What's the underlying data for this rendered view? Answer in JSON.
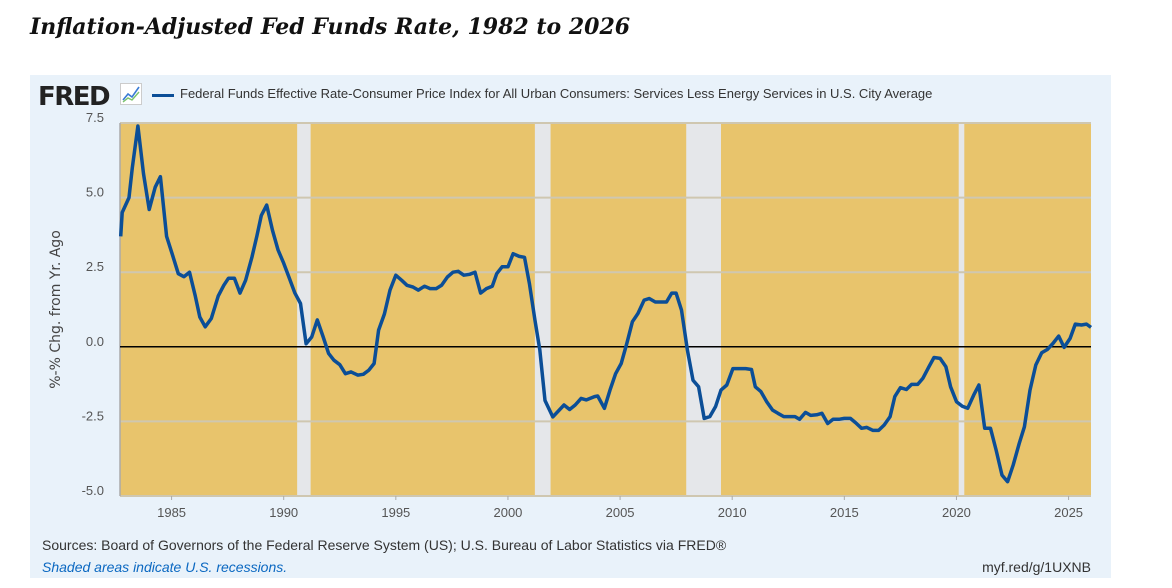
{
  "title": "Inflation-Adjusted Fed Funds Rate, 1982 to 2026",
  "logo": "FRED",
  "footer": {
    "source": "Sources: Board of Governors of the Federal Reserve System (US); U.S. Bureau of Labor Statistics via FRED®",
    "shaded_note": "Shaded areas indicate U.S. recessions.",
    "link": "myf.red/g/1UXNB"
  },
  "chart_data": {
    "type": "line",
    "title": "",
    "xlabel": "",
    "ylabel": "%-% Chg. from Yr. Ago",
    "xlim": [
      1982.7,
      2026.0
    ],
    "ylim": [
      -5.0,
      7.5
    ],
    "yticks": [
      "7.5",
      "5.0",
      "2.5",
      "0.0",
      "-2.5",
      "-5.0"
    ],
    "xticks": [
      "1985",
      "1990",
      "1995",
      "2000",
      "2005",
      "2010",
      "2015",
      "2020",
      "2025"
    ],
    "grid": true,
    "legend_placement": "top",
    "colors": {
      "line": "#0b4e97",
      "plot_bg": "#e8c46c",
      "recession": "#e5e7ea",
      "panel_bg": "#e9f2fa",
      "zero_line": "#000000"
    },
    "recessions": [
      [
        1990.6,
        1991.2
      ],
      [
        2001.2,
        2001.9
      ],
      [
        2007.95,
        2009.5
      ],
      [
        2020.1,
        2020.35
      ]
    ],
    "series": [
      {
        "name": "Federal Funds Effective Rate-Consumer Price Index for All Urban Consumers: Services Less Energy Services in U.S. City Average",
        "x": [
          1982.73,
          1982.8,
          1983.1,
          1983.25,
          1983.5,
          1983.75,
          1984.0,
          1984.27,
          1984.5,
          1984.78,
          1985.03,
          1985.3,
          1985.55,
          1985.8,
          1986.06,
          1986.26,
          1986.5,
          1986.77,
          1987.08,
          1987.33,
          1987.54,
          1987.8,
          1988.05,
          1988.3,
          1988.58,
          1988.8,
          1989.0,
          1989.24,
          1989.5,
          1989.75,
          1990.0,
          1990.23,
          1990.5,
          1990.75,
          1991.0,
          1991.25,
          1991.5,
          1991.76,
          1992.0,
          1992.24,
          1992.5,
          1992.75,
          1993.0,
          1993.3,
          1993.55,
          1993.8,
          1994.03,
          1994.23,
          1994.49,
          1994.74,
          1995.0,
          1995.26,
          1995.5,
          1995.77,
          1996.0,
          1996.28,
          1996.53,
          1996.8,
          1997.04,
          1997.3,
          1997.55,
          1997.78,
          1998.03,
          1998.3,
          1998.53,
          1998.78,
          1999.04,
          1999.3,
          1999.5,
          1999.74,
          2000.0,
          2000.23,
          2000.5,
          2000.74,
          2000.96,
          2001.2,
          2001.42,
          2001.65,
          2002.0,
          2002.5,
          2002.75,
          2003.0,
          2003.26,
          2003.5,
          2003.86,
          2004.0,
          2004.3,
          2004.55,
          2004.8,
          2005.05,
          2005.3,
          2005.55,
          2005.8,
          2006.07,
          2006.3,
          2006.57,
          2006.8,
          2007.07,
          2007.3,
          2007.5,
          2007.74,
          2008.0,
          2008.25,
          2008.5,
          2008.75,
          2009.0,
          2009.26,
          2009.5,
          2009.76,
          2010.03,
          2010.28,
          2010.6,
          2010.86,
          2011.03,
          2011.28,
          2011.54,
          2011.8,
          2012.04,
          2012.3,
          2012.55,
          2012.8,
          2013.0,
          2013.27,
          2013.5,
          2013.77,
          2014.0,
          2014.26,
          2014.5,
          2014.76,
          2015.0,
          2015.27,
          2015.5,
          2015.77,
          2016.0,
          2016.28,
          2016.53,
          2016.78,
          2017.04,
          2017.25,
          2017.5,
          2017.77,
          2018.0,
          2018.27,
          2018.5,
          2018.77,
          2019.0,
          2019.27,
          2019.53,
          2019.74,
          2020.0,
          2020.26,
          2020.5,
          2020.77,
          2021.0,
          2021.26,
          2021.52,
          2021.77,
          2022.03,
          2022.28,
          2022.53,
          2022.8,
          2023.03,
          2023.28,
          2023.54,
          2023.8,
          2024.05,
          2024.3,
          2024.56,
          2024.8,
          2025.07,
          2025.3,
          2025.57,
          2025.8,
          2026.0
        ],
        "values": [
          3.7,
          4.5,
          5.0,
          6.0,
          7.4,
          5.8,
          4.6,
          5.35,
          5.7,
          3.7,
          3.1,
          2.45,
          2.35,
          2.5,
          1.7,
          1.0,
          0.67,
          0.95,
          1.7,
          2.06,
          2.3,
          2.3,
          1.8,
          2.23,
          3.0,
          3.7,
          4.4,
          4.75,
          3.9,
          3.24,
          2.8,
          2.34,
          1.8,
          1.45,
          0.1,
          0.33,
          0.9,
          0.33,
          -0.22,
          -0.45,
          -0.6,
          -0.9,
          -0.84,
          -0.95,
          -0.92,
          -0.78,
          -0.56,
          0.56,
          1.1,
          1.9,
          2.4,
          2.23,
          2.06,
          2.0,
          1.9,
          2.03,
          1.95,
          1.95,
          2.06,
          2.34,
          2.5,
          2.53,
          2.4,
          2.43,
          2.5,
          1.8,
          1.95,
          2.03,
          2.45,
          2.68,
          2.68,
          3.12,
          3.03,
          3.0,
          2.1,
          0.9,
          -0.1,
          -1.8,
          -2.35,
          -1.95,
          -2.1,
          -1.95,
          -1.73,
          -1.78,
          -1.67,
          -1.65,
          -2.06,
          -1.45,
          -0.9,
          -0.56,
          0.11,
          0.84,
          1.12,
          1.56,
          1.62,
          1.5,
          1.5,
          1.5,
          1.8,
          1.8,
          1.23,
          -0.11,
          -1.12,
          -1.34,
          -2.4,
          -2.34,
          -2.0,
          -1.45,
          -1.28,
          -0.73,
          -0.73,
          -0.73,
          -0.76,
          -1.34,
          -1.5,
          -1.84,
          -2.12,
          -2.23,
          -2.34,
          -2.34,
          -2.34,
          -2.43,
          -2.2,
          -2.3,
          -2.28,
          -2.23,
          -2.57,
          -2.43,
          -2.43,
          -2.4,
          -2.4,
          -2.54,
          -2.73,
          -2.7,
          -2.8,
          -2.8,
          -2.62,
          -2.34,
          -1.67,
          -1.37,
          -1.43,
          -1.26,
          -1.26,
          -1.06,
          -0.67,
          -0.36,
          -0.39,
          -0.67,
          -1.34,
          -1.84,
          -1.99,
          -2.06,
          -1.62,
          -1.28,
          -2.73,
          -2.73,
          -3.46,
          -4.3,
          -4.52,
          -3.96,
          -3.24,
          -2.68,
          -1.45,
          -0.61,
          -0.2,
          -0.09,
          0.11,
          0.36,
          -0.02,
          0.28,
          0.76,
          0.73,
          0.76,
          0.65
        ]
      }
    ]
  }
}
